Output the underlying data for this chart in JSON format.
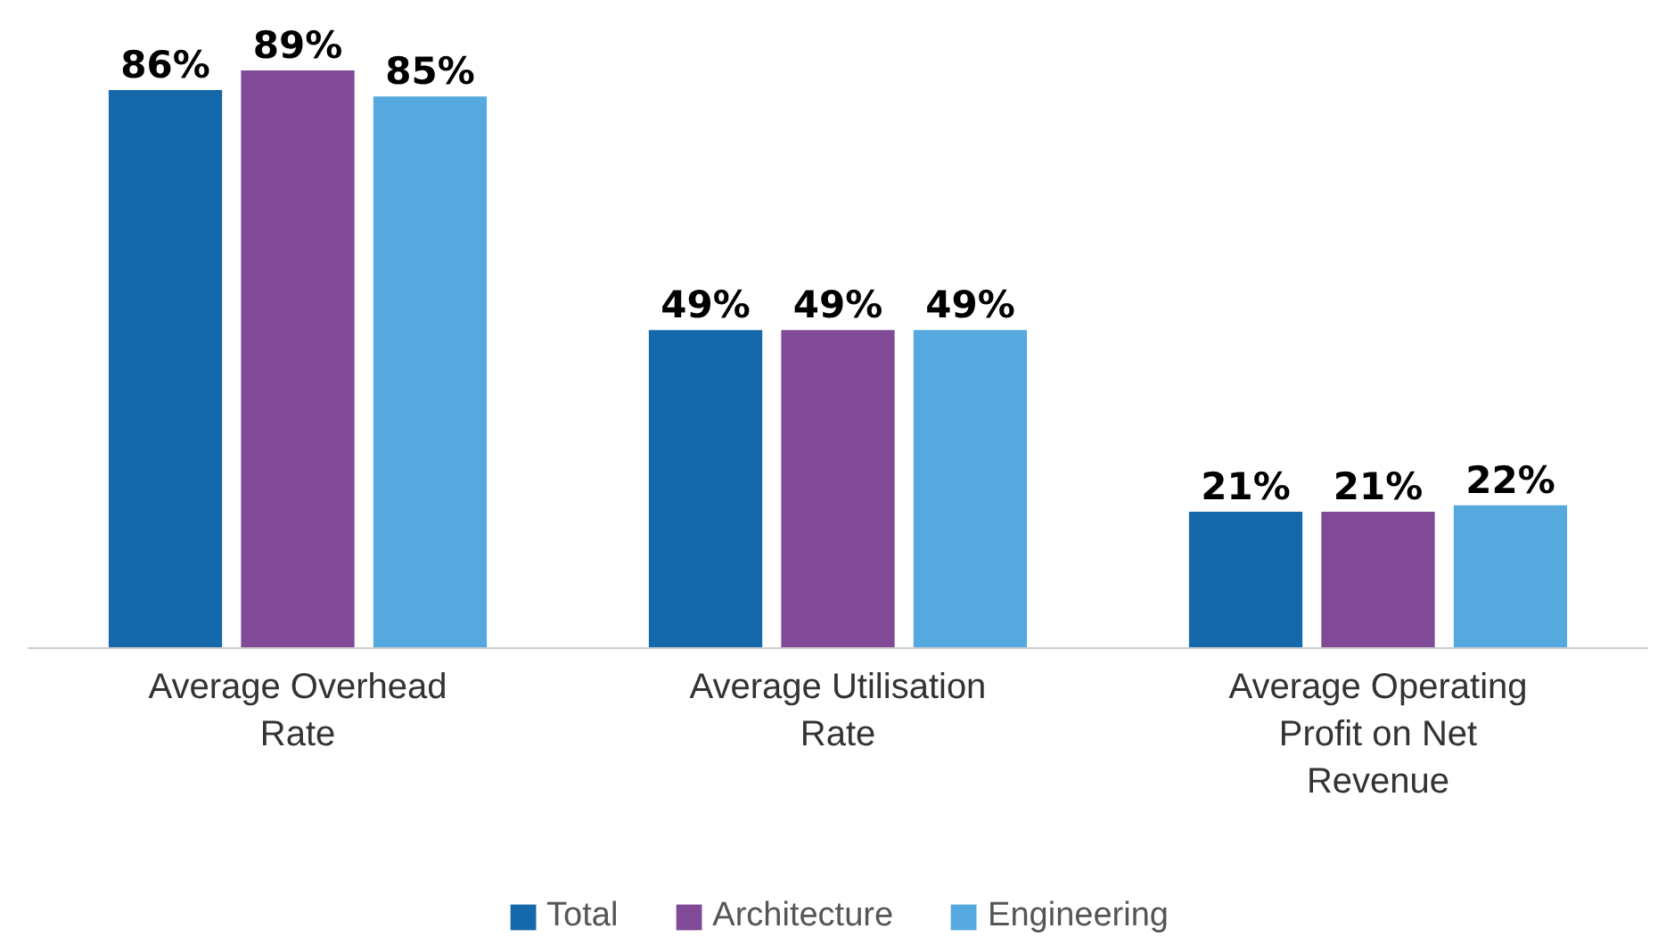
{
  "chart_data": {
    "type": "bar",
    "categories": [
      "Average Overhead Rate",
      "Average Utilisation Rate",
      "Average Operating Profit on Net Revenue"
    ],
    "series": [
      {
        "name": "Total",
        "color": "#1569ab",
        "values": [
          86,
          49,
          21
        ],
        "value_labels": [
          "86%",
          "49%",
          "21%"
        ]
      },
      {
        "name": "Architecture",
        "color": "#814a96",
        "values": [
          89,
          49,
          21
        ],
        "value_labels": [
          "89%",
          "49%",
          "21%"
        ]
      },
      {
        "name": "Engineering",
        "color": "#55a9df",
        "values": [
          85,
          49,
          22
        ],
        "value_labels": [
          "85%",
          "49%",
          "22%"
        ]
      }
    ],
    "legend": "bottom"
  }
}
